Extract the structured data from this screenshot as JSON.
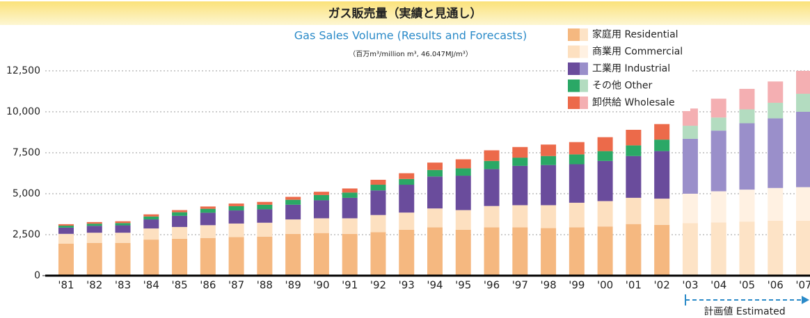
{
  "chart_data": {
    "type": "stacked_bar",
    "title": "ガス販売量（実績と見通し）",
    "subtitle": "Gas Sales Volume (Results and Forecasts)",
    "unit_label": "（百万m³/million m³, 46.047MJ/m³）",
    "annotation": "計画値 Estimated",
    "categories": [
      "'81",
      "'82",
      "'83",
      "'84",
      "'85",
      "'86",
      "'87",
      "'88",
      "'89",
      "'90",
      "'91",
      "'92",
      "'93",
      "'94",
      "'95",
      "'96",
      "'97",
      "'98",
      "'99",
      "'00",
      "'01",
      "'02",
      "'03",
      "'04",
      "'05",
      "'06",
      "'07"
    ],
    "estimated": [
      false,
      false,
      false,
      false,
      false,
      false,
      false,
      false,
      false,
      false,
      false,
      false,
      false,
      false,
      false,
      false,
      false,
      false,
      false,
      false,
      false,
      false,
      true,
      true,
      true,
      true,
      true
    ],
    "series": [
      {
        "name": "家庭用 Residential",
        "color": "#f5b880",
        "forecast_color": "#fde3c6",
        "values": [
          1950,
          2000,
          2000,
          2200,
          2250,
          2300,
          2350,
          2380,
          2550,
          2600,
          2550,
          2650,
          2800,
          2950,
          2800,
          2950,
          2950,
          2900,
          2950,
          3000,
          3150,
          3100,
          3200,
          3250,
          3300,
          3350,
          3350
        ]
      },
      {
        "name": "商業用 Commercial",
        "color": "#fde0c0",
        "forecast_color": "#fff1e2",
        "values": [
          600,
          620,
          620,
          680,
          720,
          780,
          830,
          850,
          880,
          900,
          950,
          1050,
          1050,
          1150,
          1200,
          1300,
          1350,
          1400,
          1500,
          1550,
          1600,
          1600,
          1800,
          1900,
          1950,
          2000,
          2050
        ]
      },
      {
        "name": "工業用 Industrial",
        "color": "#6a4c9c",
        "forecast_color": "#9a8fca",
        "values": [
          380,
          420,
          450,
          550,
          680,
          760,
          800,
          820,
          900,
          1100,
          1250,
          1500,
          1700,
          1950,
          2100,
          2250,
          2400,
          2450,
          2350,
          2450,
          2550,
          2900,
          3350,
          3700,
          4050,
          4250,
          4600
        ]
      },
      {
        "name": "その他 Other",
        "color": "#2aa866",
        "forecast_color": "#b3dcc0",
        "values": [
          120,
          130,
          140,
          180,
          220,
          240,
          260,
          280,
          300,
          320,
          320,
          350,
          350,
          400,
          450,
          500,
          500,
          550,
          600,
          600,
          650,
          700,
          800,
          800,
          850,
          950,
          1100
        ]
      },
      {
        "name": "卸供給 Wholesale",
        "color": "#ec6a4a",
        "forecast_color": "#f4afb2",
        "values": [
          90,
          100,
          110,
          130,
          130,
          140,
          160,
          170,
          180,
          200,
          250,
          300,
          350,
          450,
          550,
          650,
          650,
          700,
          750,
          850,
          950,
          950,
          1050,
          1150,
          1250,
          1300,
          1400
        ]
      }
    ],
    "ylim": [
      0,
      12500
    ],
    "yticks": [
      0,
      {
        "value": 2500,
        "label": "2,500"
      },
      {
        "value": 5000,
        "label": "5,000"
      },
      {
        "value": 7500,
        "label": "7,500"
      },
      {
        "value": 10000,
        "label": "10,000"
      },
      {
        "value": 12500,
        "label": "12,500"
      }
    ],
    "grid": true
  }
}
